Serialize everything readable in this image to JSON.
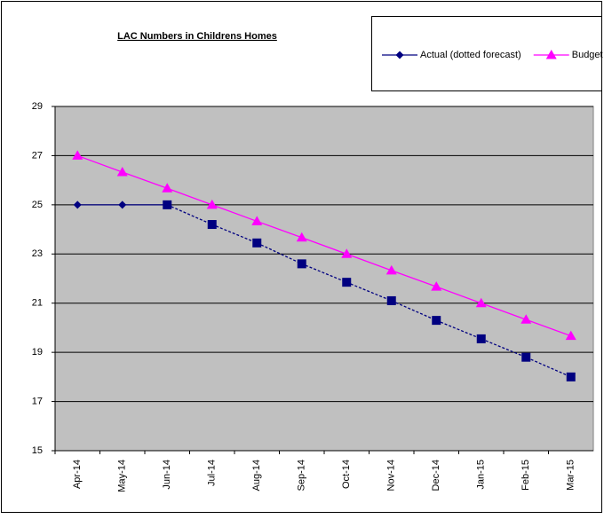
{
  "chart_data": {
    "type": "line",
    "title": "LAC Numbers in Childrens Homes",
    "categories": [
      "Apr-14",
      "May-14",
      "Jun-14",
      "Jul-14",
      "Aug-14",
      "Sep-14",
      "Oct-14",
      "Nov-14",
      "Dec-14",
      "Jan-15",
      "Feb-15",
      "Mar-15"
    ],
    "series": [
      {
        "name": "Actual (dotted forecast)",
        "color": "#000080",
        "marker": "diamond",
        "values": [
          25,
          25,
          25,
          null,
          null,
          null,
          null,
          null,
          null,
          null,
          null,
          null
        ]
      },
      {
        "color": "#000080",
        "marker": "square",
        "dashed": true,
        "values": [
          null,
          null,
          25,
          24.2,
          23.45,
          22.6,
          21.85,
          21.1,
          20.3,
          19.55,
          18.8,
          18
        ]
      },
      {
        "name": "Budget",
        "color": "#ff00ff",
        "marker": "triangle",
        "values": [
          27,
          26.33,
          25.67,
          25,
          24.33,
          23.67,
          23,
          22.33,
          21.67,
          21,
          20.33,
          19.67
        ]
      }
    ],
    "ylim": [
      15,
      29
    ],
    "yticks": [
      15,
      17,
      19,
      21,
      23,
      25,
      27,
      29
    ],
    "grid": true,
    "plot_background": "#c0c0c0"
  }
}
